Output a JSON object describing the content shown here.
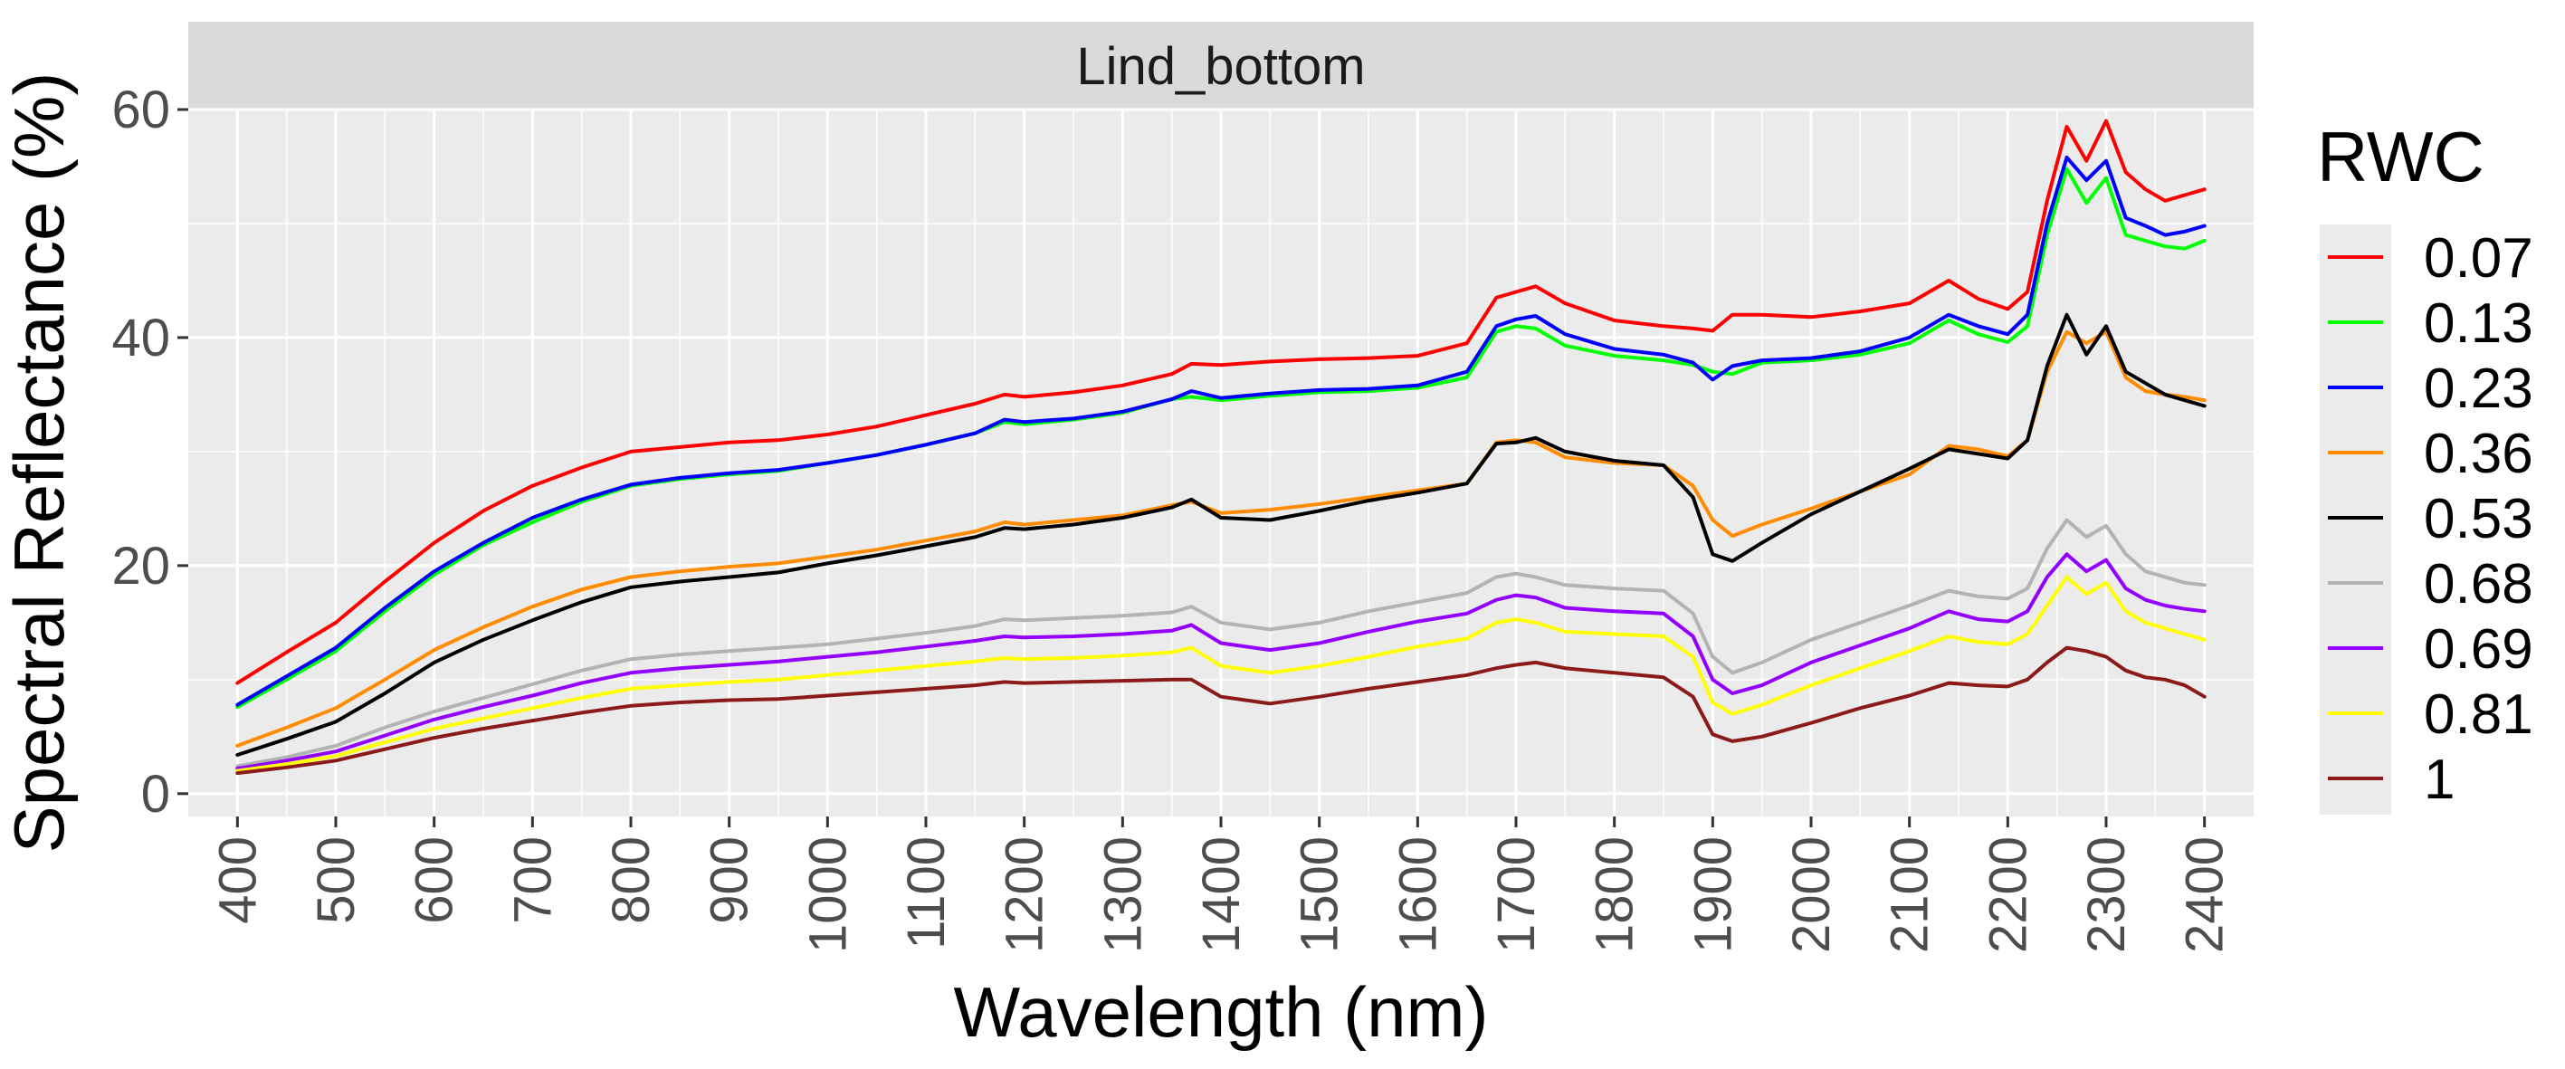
{
  "chart_data": {
    "type": "line",
    "facet_label": "Lind_bottom",
    "xlabel": "Wavelength (nm)",
    "ylabel": "Spectral Reflectance (%)",
    "xlim": [
      350,
      2450
    ],
    "ylim": [
      -2,
      60
    ],
    "x_ticks": [
      400,
      500,
      600,
      700,
      800,
      900,
      1000,
      1100,
      1200,
      1300,
      1400,
      1500,
      1600,
      1700,
      1800,
      1900,
      2000,
      2100,
      2200,
      2300,
      2400
    ],
    "x_tick_labels": [
      "400",
      "500",
      "600",
      "700",
      "800",
      "900",
      "1000",
      "1100",
      "1200",
      "1300",
      "1400",
      "1500",
      "1600",
      "1700",
      "1800",
      "1900",
      "2000",
      "2100",
      "2200",
      "2300",
      "2400"
    ],
    "y_ticks": [
      0,
      20,
      40,
      60
    ],
    "y_tick_labels": [
      "0",
      "20",
      "40",
      "60"
    ],
    "grid": true,
    "legend": {
      "title": "RWC",
      "position": "right"
    },
    "x": [
      400,
      450,
      500,
      550,
      600,
      650,
      700,
      750,
      800,
      850,
      900,
      950,
      1000,
      1050,
      1100,
      1150,
      1180,
      1200,
      1250,
      1300,
      1350,
      1370,
      1400,
      1450,
      1500,
      1550,
      1600,
      1650,
      1680,
      1700,
      1720,
      1750,
      1800,
      1850,
      1880,
      1900,
      1920,
      1950,
      2000,
      2050,
      2100,
      2140,
      2170,
      2200,
      2220,
      2240,
      2260,
      2280,
      2300,
      2320,
      2340,
      2360,
      2380,
      2400
    ],
    "series": [
      {
        "name": "0.07",
        "color": "#ff0000",
        "values": [
          9.7,
          12.4,
          15.0,
          18.6,
          22.0,
          24.8,
          27.0,
          28.6,
          30.0,
          30.4,
          30.8,
          31.0,
          31.5,
          32.2,
          33.2,
          34.2,
          35.0,
          34.8,
          35.2,
          35.8,
          36.8,
          37.7,
          37.6,
          37.9,
          38.1,
          38.2,
          38.4,
          39.5,
          43.5,
          44.0,
          44.5,
          43.0,
          41.5,
          41.0,
          40.8,
          40.6,
          42.0,
          42.0,
          41.8,
          42.3,
          43.0,
          45.0,
          43.4,
          42.5,
          44.0,
          52.0,
          58.5,
          55.5,
          59.0,
          54.5,
          53.0,
          52.0,
          52.5,
          53.0
        ]
      },
      {
        "name": "0.13",
        "color": "#00ff00",
        "values": [
          7.6,
          10.0,
          12.5,
          16.0,
          19.2,
          21.8,
          23.8,
          25.6,
          27.0,
          27.6,
          28.0,
          28.3,
          29.0,
          29.7,
          30.6,
          31.6,
          32.6,
          32.4,
          32.8,
          33.4,
          34.6,
          34.8,
          34.5,
          34.9,
          35.2,
          35.3,
          35.6,
          36.5,
          40.5,
          41.0,
          40.8,
          39.3,
          38.4,
          38.0,
          37.6,
          37.0,
          36.8,
          37.8,
          38.0,
          38.5,
          39.5,
          41.5,
          40.3,
          39.6,
          41.0,
          49.0,
          54.8,
          51.8,
          54.0,
          49.0,
          48.5,
          48.0,
          47.8,
          48.5
        ]
      },
      {
        "name": "0.23",
        "color": "#0000ff",
        "values": [
          7.8,
          10.3,
          12.8,
          16.3,
          19.5,
          22.0,
          24.2,
          25.8,
          27.1,
          27.7,
          28.1,
          28.4,
          29.0,
          29.7,
          30.6,
          31.6,
          32.8,
          32.6,
          32.9,
          33.5,
          34.6,
          35.3,
          34.7,
          35.1,
          35.4,
          35.5,
          35.8,
          37.0,
          41.0,
          41.6,
          41.9,
          40.3,
          39.0,
          38.5,
          37.8,
          36.3,
          37.5,
          38.0,
          38.2,
          38.8,
          40.0,
          42.0,
          41.0,
          40.3,
          42.0,
          50.0,
          55.8,
          53.8,
          55.5,
          50.5,
          49.8,
          49.0,
          49.3,
          49.8
        ]
      },
      {
        "name": "0.36",
        "color": "#ff8c00",
        "values": [
          4.2,
          5.8,
          7.5,
          10.0,
          12.6,
          14.6,
          16.4,
          17.9,
          19.0,
          19.5,
          19.9,
          20.2,
          20.8,
          21.4,
          22.2,
          23.0,
          23.8,
          23.6,
          24.0,
          24.4,
          25.3,
          25.6,
          24.6,
          24.9,
          25.4,
          26.0,
          26.6,
          27.2,
          30.8,
          31.0,
          30.8,
          29.5,
          29.0,
          28.8,
          27.0,
          24.0,
          22.6,
          23.6,
          25.0,
          26.5,
          28.0,
          30.5,
          30.2,
          29.6,
          31.0,
          37.0,
          40.5,
          39.5,
          40.5,
          36.5,
          35.3,
          35.0,
          34.8,
          34.5
        ]
      },
      {
        "name": "0.53",
        "color": "#000000",
        "values": [
          3.4,
          4.8,
          6.3,
          8.8,
          11.5,
          13.5,
          15.2,
          16.8,
          18.1,
          18.6,
          19.0,
          19.4,
          20.2,
          20.9,
          21.7,
          22.5,
          23.3,
          23.2,
          23.6,
          24.2,
          25.1,
          25.8,
          24.2,
          24.0,
          24.8,
          25.7,
          26.4,
          27.2,
          30.7,
          30.8,
          31.2,
          30.0,
          29.2,
          28.8,
          26.0,
          21.0,
          20.4,
          22.0,
          24.5,
          26.5,
          28.5,
          30.2,
          29.8,
          29.4,
          31.0,
          37.5,
          42.0,
          38.5,
          41.0,
          37.0,
          36.0,
          35.0,
          34.5,
          34.0
        ]
      },
      {
        "name": "0.68",
        "color": "#b3b3b3",
        "values": [
          2.4,
          3.2,
          4.2,
          5.8,
          7.2,
          8.4,
          9.6,
          10.8,
          11.8,
          12.2,
          12.5,
          12.8,
          13.1,
          13.6,
          14.1,
          14.7,
          15.3,
          15.2,
          15.4,
          15.6,
          15.9,
          16.4,
          15.0,
          14.4,
          15.0,
          16.0,
          16.8,
          17.6,
          19.0,
          19.3,
          19.0,
          18.3,
          18.0,
          17.8,
          15.8,
          12.0,
          10.6,
          11.5,
          13.5,
          15.0,
          16.5,
          17.8,
          17.3,
          17.1,
          18.0,
          21.5,
          24.0,
          22.5,
          23.5,
          21.0,
          19.5,
          19.0,
          18.5,
          18.3
        ]
      },
      {
        "name": "0.69",
        "color": "#9400ff",
        "values": [
          2.2,
          2.9,
          3.7,
          5.1,
          6.5,
          7.6,
          8.6,
          9.7,
          10.6,
          11.0,
          11.3,
          11.6,
          12.0,
          12.4,
          12.9,
          13.4,
          13.8,
          13.7,
          13.8,
          14.0,
          14.3,
          14.8,
          13.2,
          12.6,
          13.2,
          14.2,
          15.1,
          15.8,
          17.0,
          17.4,
          17.2,
          16.3,
          16.0,
          15.8,
          13.8,
          10.0,
          8.8,
          9.5,
          11.5,
          13.0,
          14.5,
          16.0,
          15.3,
          15.1,
          16.0,
          19.0,
          21.0,
          19.5,
          20.5,
          18.0,
          17.0,
          16.5,
          16.2,
          16.0
        ]
      },
      {
        "name": "0.81",
        "color": "#ffff00",
        "values": [
          2.0,
          2.6,
          3.3,
          4.5,
          5.7,
          6.6,
          7.5,
          8.4,
          9.2,
          9.5,
          9.8,
          10.0,
          10.4,
          10.8,
          11.2,
          11.6,
          11.9,
          11.8,
          11.9,
          12.1,
          12.4,
          12.8,
          11.2,
          10.6,
          11.2,
          12.0,
          12.9,
          13.6,
          15.0,
          15.3,
          15.0,
          14.2,
          14.0,
          13.8,
          12.0,
          8.0,
          7.0,
          7.8,
          9.5,
          11.0,
          12.5,
          13.8,
          13.3,
          13.1,
          14.0,
          16.5,
          19.0,
          17.5,
          18.5,
          16.0,
          15.0,
          14.5,
          14.0,
          13.5
        ]
      },
      {
        "name": "1",
        "color": "#8b1a1a",
        "values": [
          1.8,
          2.3,
          2.9,
          3.9,
          4.9,
          5.7,
          6.4,
          7.1,
          7.7,
          8.0,
          8.2,
          8.3,
          8.6,
          8.9,
          9.2,
          9.5,
          9.8,
          9.7,
          9.8,
          9.9,
          10.0,
          10.0,
          8.5,
          7.9,
          8.5,
          9.2,
          9.8,
          10.4,
          11.0,
          11.3,
          11.5,
          11.0,
          10.6,
          10.2,
          8.5,
          5.2,
          4.6,
          5.0,
          6.2,
          7.5,
          8.6,
          9.7,
          9.5,
          9.4,
          10.0,
          11.5,
          12.8,
          12.5,
          12.0,
          10.8,
          10.2,
          10.0,
          9.5,
          8.5
        ]
      }
    ]
  }
}
